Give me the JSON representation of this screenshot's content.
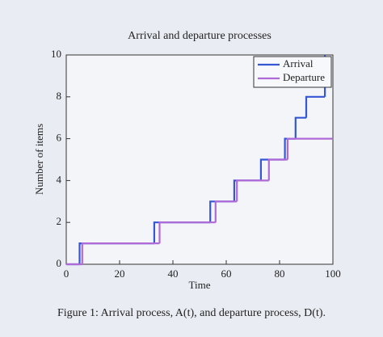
{
  "chart_data": {
    "type": "step",
    "title": "Arrival and departure processes",
    "x_label": "Time",
    "y_label": "Number of items",
    "caption": "Figure 1: Arrival process, A(t), and departure process, D(t).",
    "xlim": [
      0,
      100
    ],
    "xticks": [
      0,
      20,
      40,
      60,
      80,
      100
    ],
    "ylim": [
      0,
      10
    ],
    "yticks": [
      0,
      2,
      4,
      6,
      8,
      10
    ],
    "legend": "northeast",
    "series": [
      {
        "name": "Arrival",
        "color": "#3557d6",
        "x": [
          0,
          5,
          33,
          54,
          63,
          73,
          82,
          86,
          90,
          97
        ],
        "values": [
          0,
          1,
          2,
          3,
          4,
          5,
          6,
          7,
          8,
          10
        ]
      },
      {
        "name": "Departure",
        "color": "#b06ad8",
        "x": [
          0,
          6,
          35,
          56,
          64,
          76,
          83,
          100
        ],
        "values": [
          0,
          1,
          2,
          3,
          4,
          5,
          6,
          6
        ]
      }
    ]
  }
}
